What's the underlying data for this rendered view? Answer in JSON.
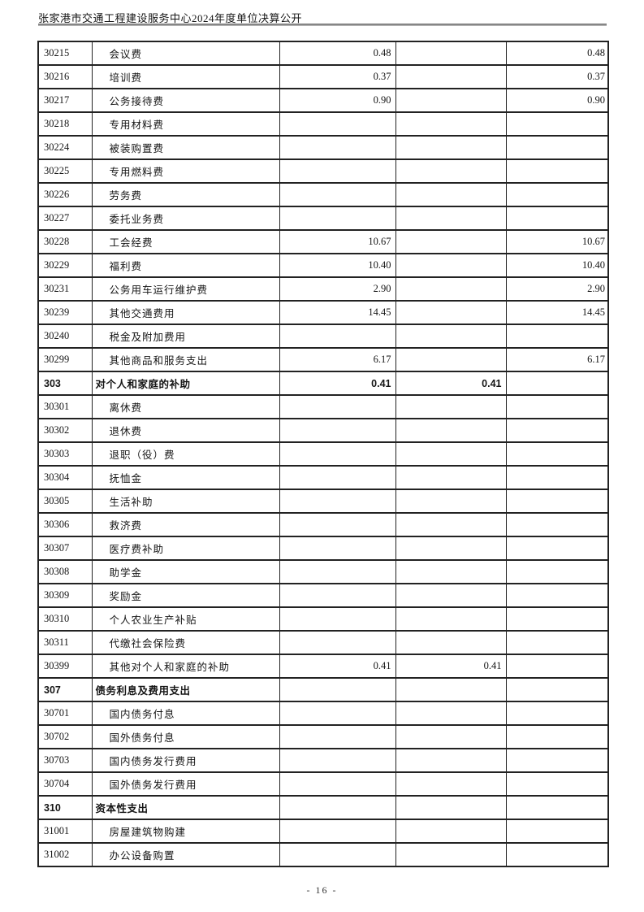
{
  "page": {
    "header_title": "张家港市交通工程建设服务中心2024年度单位决算公开",
    "footer_page_number": "- 16 -",
    "colors": {
      "paper": "#ffffff",
      "table_border": "#222222",
      "header_rule": "#8a8a8a",
      "text": "#151515"
    }
  },
  "table": {
    "column_semantics": [
      "科目编码",
      "科目名称",
      "金额列1",
      "金额列2",
      "金额列3"
    ],
    "rows": [
      {
        "code": "30215",
        "name": "会议费",
        "values": [
          "0.48",
          "",
          "0.48"
        ],
        "bold": false
      },
      {
        "code": "30216",
        "name": "培训费",
        "values": [
          "0.37",
          "",
          "0.37"
        ],
        "bold": false
      },
      {
        "code": "30217",
        "name": "公务接待费",
        "values": [
          "0.90",
          "",
          "0.90"
        ],
        "bold": false
      },
      {
        "code": "30218",
        "name": "专用材料费",
        "values": [
          "",
          "",
          ""
        ],
        "bold": false
      },
      {
        "code": "30224",
        "name": "被装购置费",
        "values": [
          "",
          "",
          ""
        ],
        "bold": false
      },
      {
        "code": "30225",
        "name": "专用燃料费",
        "values": [
          "",
          "",
          ""
        ],
        "bold": false
      },
      {
        "code": "30226",
        "name": "劳务费",
        "values": [
          "",
          "",
          ""
        ],
        "bold": false
      },
      {
        "code": "30227",
        "name": "委托业务费",
        "values": [
          "",
          "",
          ""
        ],
        "bold": false
      },
      {
        "code": "30228",
        "name": "工会经费",
        "values": [
          "10.67",
          "",
          "10.67"
        ],
        "bold": false
      },
      {
        "code": "30229",
        "name": "福利费",
        "values": [
          "10.40",
          "",
          "10.40"
        ],
        "bold": false
      },
      {
        "code": "30231",
        "name": "公务用车运行维护费",
        "values": [
          "2.90",
          "",
          "2.90"
        ],
        "bold": false
      },
      {
        "code": "30239",
        "name": "其他交通费用",
        "values": [
          "14.45",
          "",
          "14.45"
        ],
        "bold": false
      },
      {
        "code": "30240",
        "name": "税金及附加费用",
        "values": [
          "",
          "",
          ""
        ],
        "bold": false
      },
      {
        "code": "30299",
        "name": "其他商品和服务支出",
        "values": [
          "6.17",
          "",
          "6.17"
        ],
        "bold": false
      },
      {
        "code": "303",
        "name": "对个人和家庭的补助",
        "values": [
          "0.41",
          "0.41",
          ""
        ],
        "bold": true
      },
      {
        "code": "30301",
        "name": "离休费",
        "values": [
          "",
          "",
          ""
        ],
        "bold": false
      },
      {
        "code": "30302",
        "name": "退休费",
        "values": [
          "",
          "",
          ""
        ],
        "bold": false
      },
      {
        "code": "30303",
        "name": "退职（役）费",
        "values": [
          "",
          "",
          ""
        ],
        "bold": false
      },
      {
        "code": "30304",
        "name": "抚恤金",
        "values": [
          "",
          "",
          ""
        ],
        "bold": false
      },
      {
        "code": "30305",
        "name": "生活补助",
        "values": [
          "",
          "",
          ""
        ],
        "bold": false
      },
      {
        "code": "30306",
        "name": "救济费",
        "values": [
          "",
          "",
          ""
        ],
        "bold": false
      },
      {
        "code": "30307",
        "name": "医疗费补助",
        "values": [
          "",
          "",
          ""
        ],
        "bold": false
      },
      {
        "code": "30308",
        "name": "助学金",
        "values": [
          "",
          "",
          ""
        ],
        "bold": false
      },
      {
        "code": "30309",
        "name": "奖励金",
        "values": [
          "",
          "",
          ""
        ],
        "bold": false
      },
      {
        "code": "30310",
        "name": "个人农业生产补贴",
        "values": [
          "",
          "",
          ""
        ],
        "bold": false
      },
      {
        "code": "30311",
        "name": "代缴社会保险费",
        "values": [
          "",
          "",
          ""
        ],
        "bold": false
      },
      {
        "code": "30399",
        "name": "其他对个人和家庭的补助",
        "values": [
          "0.41",
          "0.41",
          ""
        ],
        "bold": false
      },
      {
        "code": "307",
        "name": "债务利息及费用支出",
        "values": [
          "",
          "",
          ""
        ],
        "bold": true
      },
      {
        "code": "30701",
        "name": "国内债务付息",
        "values": [
          "",
          "",
          ""
        ],
        "bold": false
      },
      {
        "code": "30702",
        "name": "国外债务付息",
        "values": [
          "",
          "",
          ""
        ],
        "bold": false
      },
      {
        "code": "30703",
        "name": "国内债务发行费用",
        "values": [
          "",
          "",
          ""
        ],
        "bold": false
      },
      {
        "code": "30704",
        "name": "国外债务发行费用",
        "values": [
          "",
          "",
          ""
        ],
        "bold": false
      },
      {
        "code": "310",
        "name": "资本性支出",
        "values": [
          "",
          "",
          ""
        ],
        "bold": true
      },
      {
        "code": "31001",
        "name": "房屋建筑物购建",
        "values": [
          "",
          "",
          ""
        ],
        "bold": false
      },
      {
        "code": "31002",
        "name": "办公设备购置",
        "values": [
          "",
          "",
          ""
        ],
        "bold": false
      }
    ]
  }
}
